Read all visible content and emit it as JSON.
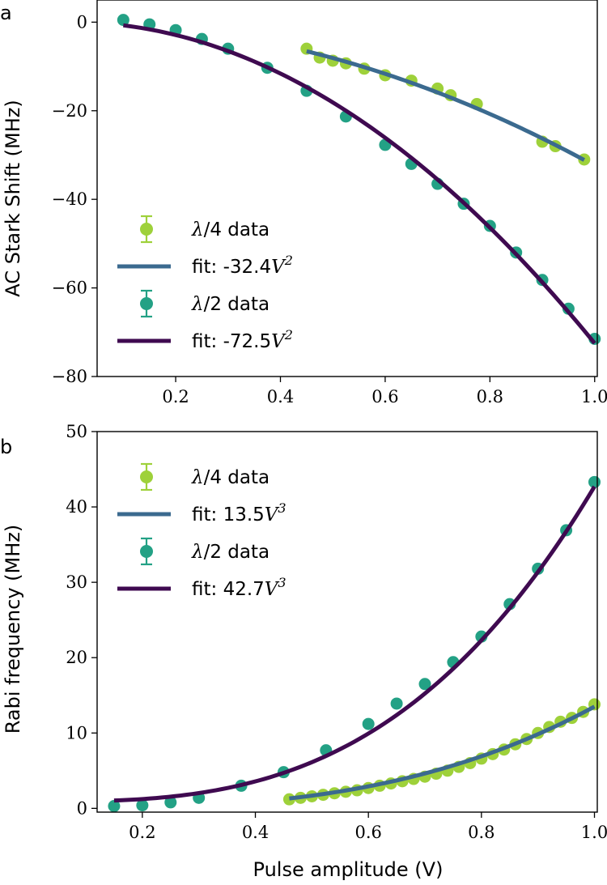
{
  "colors": {
    "quarter_data": "#9ed13a",
    "quarter_fit": "#3b6a8f",
    "half_data": "#23a185",
    "half_fit": "#3f0a50"
  },
  "chart_data": [
    {
      "type": "scatter",
      "panel_label": "a",
      "xlabel": "",
      "ylabel": "AC Stark Shift (MHz)",
      "xlim": [
        0.05,
        1.005
      ],
      "ylim": [
        -80,
        5
      ],
      "xticks": [
        0.2,
        0.4,
        0.6,
        0.8,
        1.0
      ],
      "xtick_labels": [
        "0.2",
        "0.4",
        "0.6",
        "0.8",
        "1.0"
      ],
      "yticks": [
        0,
        -20,
        -40,
        -60,
        -80
      ],
      "ytick_labels": [
        "0",
        "−20",
        "−40",
        "−60",
        "−80"
      ],
      "legend_position": "center-left",
      "legend": [
        {
          "kind": "data",
          "prefix": "λ",
          "suffix": "/4 data",
          "color_key": "quarter_data"
        },
        {
          "kind": "fit",
          "prefix": "fit: -32.4",
          "var": "V",
          "exp": "2",
          "color_key": "quarter_fit"
        },
        {
          "kind": "data",
          "prefix": "λ",
          "suffix": "/2 data",
          "color_key": "half_data"
        },
        {
          "kind": "fit",
          "prefix": "fit: -72.5",
          "var": "V",
          "exp": "2",
          "color_key": "half_fit"
        }
      ],
      "series": [
        {
          "name": "λ/4 data",
          "role": "data",
          "color_key": "quarter_data",
          "x": [
            0.45,
            0.475,
            0.5,
            0.525,
            0.56,
            0.6,
            0.65,
            0.7,
            0.725,
            0.775,
            0.9,
            0.925,
            0.98
          ],
          "y": [
            -6,
            -8,
            -8.7,
            -9.3,
            -10.5,
            -12,
            -13.2,
            -15,
            -16.5,
            -18.5,
            -27,
            -28,
            -31
          ]
        },
        {
          "name": "fit: -32.4V²",
          "role": "fit",
          "color_key": "quarter_fit",
          "coef": -32.4,
          "power": 2,
          "x_range": [
            0.45,
            0.98
          ]
        },
        {
          "name": "λ/2 data",
          "role": "data",
          "color_key": "half_data",
          "x": [
            0.1,
            0.15,
            0.2,
            0.25,
            0.3,
            0.375,
            0.45,
            0.525,
            0.6,
            0.65,
            0.7,
            0.75,
            0.8,
            0.85,
            0.9,
            0.95,
            1.0
          ],
          "y": [
            0.5,
            -0.5,
            -1.8,
            -3.8,
            -6,
            -10.3,
            -15.5,
            -21.3,
            -27.7,
            -32,
            -36.5,
            -41,
            -46,
            -52,
            -58.2,
            -64.7,
            -71.5
          ]
        },
        {
          "name": "fit: -72.5V²",
          "role": "fit",
          "color_key": "half_fit",
          "coef": -72.5,
          "power": 2,
          "x_range": [
            0.1,
            1.0
          ]
        }
      ]
    },
    {
      "type": "scatter",
      "panel_label": "b",
      "xlabel": "Pulse amplitude (V)",
      "ylabel": "Rabi frequency (MHz)",
      "xlim": [
        0.12,
        1.005
      ],
      "ylim": [
        -0.5,
        50
      ],
      "xticks": [
        0.2,
        0.4,
        0.6,
        0.8,
        1.0
      ],
      "xtick_labels": [
        "0.2",
        "0.4",
        "0.6",
        "0.8",
        "1.0"
      ],
      "yticks": [
        0,
        10,
        20,
        30,
        40,
        50
      ],
      "ytick_labels": [
        "0",
        "10",
        "20",
        "30",
        "40",
        "50"
      ],
      "legend_position": "top-left",
      "legend": [
        {
          "kind": "data",
          "prefix": "λ",
          "suffix": "/4 data",
          "color_key": "quarter_data"
        },
        {
          "kind": "fit",
          "prefix": "fit: 13.5",
          "var": "V",
          "exp": "3",
          "color_key": "quarter_fit"
        },
        {
          "kind": "data",
          "prefix": "λ",
          "suffix": "/2 data",
          "color_key": "half_data"
        },
        {
          "kind": "fit",
          "prefix": "fit: 42.7",
          "var": "V",
          "exp": "3",
          "color_key": "half_fit"
        }
      ],
      "series": [
        {
          "name": "λ/4 data",
          "role": "data",
          "color_key": "quarter_data",
          "x": [
            0.46,
            0.48,
            0.5,
            0.52,
            0.54,
            0.56,
            0.58,
            0.6,
            0.62,
            0.64,
            0.66,
            0.68,
            0.7,
            0.72,
            0.74,
            0.76,
            0.78,
            0.8,
            0.82,
            0.84,
            0.86,
            0.88,
            0.9,
            0.92,
            0.94,
            0.96,
            0.98,
            1.0
          ],
          "y": [
            1.2,
            1.4,
            1.6,
            1.8,
            2.0,
            2.2,
            2.4,
            2.7,
            3.0,
            3.3,
            3.6,
            3.9,
            4.2,
            4.6,
            5.0,
            5.5,
            6.0,
            6.6,
            7.2,
            7.8,
            8.5,
            9.2,
            10.0,
            10.8,
            11.5,
            12.0,
            12.8,
            13.8
          ]
        },
        {
          "name": "fit: 13.5V³",
          "role": "fit",
          "color_key": "quarter_fit",
          "coef": 13.5,
          "power": 3,
          "x_range": [
            0.46,
            1.0
          ]
        },
        {
          "name": "λ/2 data",
          "role": "data",
          "color_key": "half_data",
          "x": [
            0.15,
            0.2,
            0.25,
            0.3,
            0.375,
            0.45,
            0.525,
            0.6,
            0.65,
            0.7,
            0.75,
            0.8,
            0.85,
            0.9,
            0.95,
            1.0
          ],
          "y": [
            0.3,
            0.4,
            0.8,
            1.4,
            3.0,
            4.8,
            7.7,
            11.2,
            13.9,
            16.5,
            19.4,
            22.8,
            27.1,
            31.8,
            36.9,
            43.3
          ]
        },
        {
          "name": "fit: 42.7V³",
          "role": "fit",
          "color_key": "half_fit",
          "coef": 42.7,
          "power": 3,
          "offset": 0.9,
          "x_range": [
            0.15,
            1.0
          ]
        }
      ]
    }
  ]
}
